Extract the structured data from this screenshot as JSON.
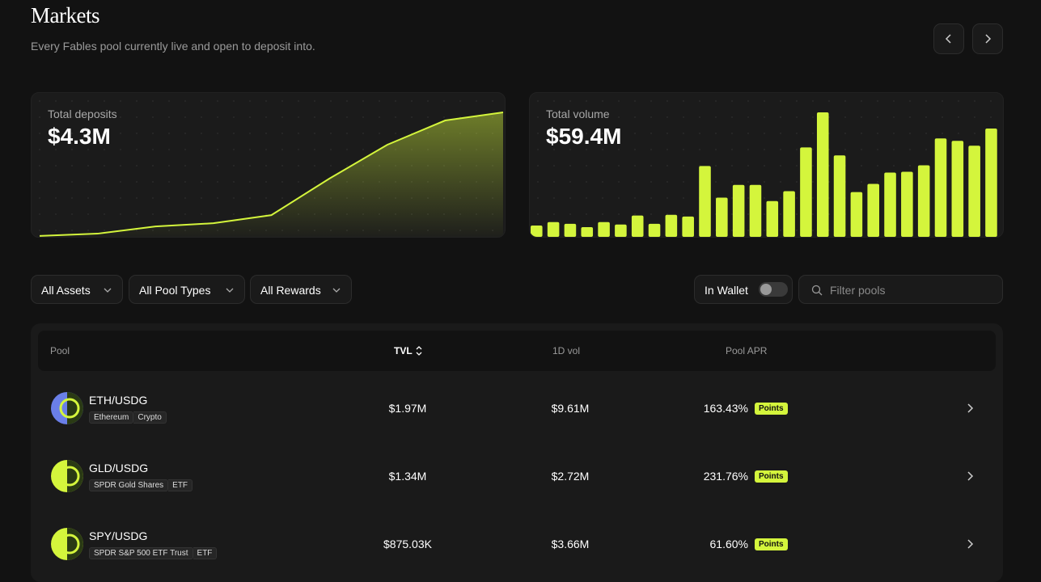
{
  "header": {
    "title": "Markets",
    "subtitle": "Every Fables pool currently live and open to deposit into."
  },
  "chart_data": [
    {
      "type": "area",
      "title": "Total deposits",
      "total": "$4.3M",
      "color": "#d4f53c",
      "values": [
        0.03,
        0.11,
        0.36,
        0.47,
        0.75,
        2.01,
        3.18,
        4.02,
        4.3
      ]
    },
    {
      "type": "bar",
      "title": "Total volume",
      "total": "$59.4M",
      "color": "#d4f53c",
      "values": [
        0.47,
        0.61,
        0.54,
        0.4,
        0.61,
        0.51,
        0.88,
        0.54,
        0.91,
        0.84,
        2.93,
        1.62,
        2.15,
        2.15,
        1.48,
        1.89,
        3.7,
        5.15,
        3.37,
        1.85,
        2.19,
        2.66,
        2.69,
        2.96,
        4.07,
        3.97,
        3.77,
        4.48
      ]
    }
  ],
  "filters": {
    "dropdowns": [
      "All Assets",
      "All Pool Types",
      "All Rewards"
    ],
    "toggle": "In Wallet",
    "search": "Filter pools"
  },
  "table": {
    "columns": [
      "Pool",
      "TVL",
      "1D vol",
      "Pool APR"
    ],
    "rows": [
      {
        "pool": "ETH/USDG",
        "asset": "Ethereum",
        "category": "Crypto",
        "tvl": "$1.97M",
        "vol": "$9.61M",
        "apr": "163.43%",
        "badge": "Points"
      },
      {
        "pool": "GLD/USDG",
        "asset": "SPDR Gold Shares",
        "category": "ETF",
        "tvl": "$1.34M",
        "vol": "$2.72M",
        "apr": "231.76%",
        "badge": "Points"
      },
      {
        "pool": "SPY/USDG",
        "asset": "SPDR S&P 500 ETF Trust",
        "category": "ETF",
        "tvl": "$875.03K",
        "vol": "$3.66M",
        "apr": "61.60%",
        "badge": "Points"
      }
    ]
  }
}
